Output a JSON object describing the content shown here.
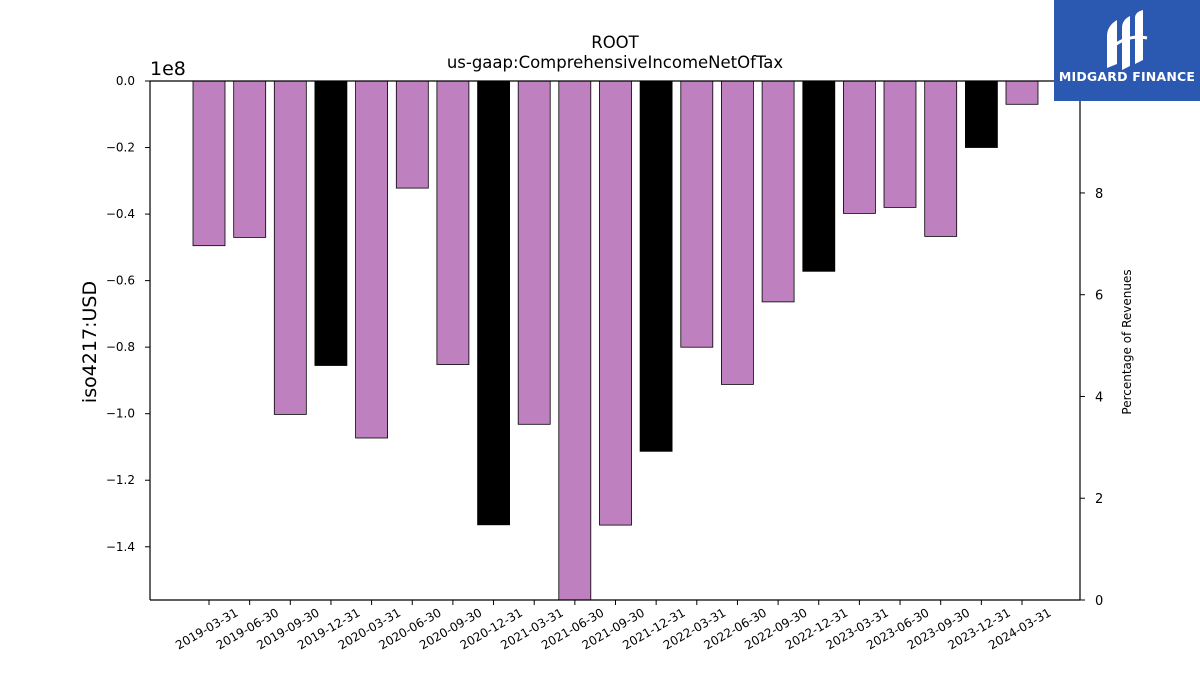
{
  "chart_data": {
    "type": "bar",
    "title": "ROOT",
    "subtitle": "us-gaap:ComprehensiveIncomeNetOfTax",
    "ylabel": "iso4217:USD",
    "y_offset_label": "1e8",
    "y2label": "Percentage of Revenues",
    "ylim": [
      -156000000,
      0
    ],
    "y_ticks": [
      0,
      -20000000,
      -40000000,
      -60000000,
      -80000000,
      -100000000,
      -120000000,
      -140000000
    ],
    "y_tick_labels": [
      "0.0",
      "−0.2",
      "−0.4",
      "−0.6",
      "−0.8",
      "−1.0",
      "−1.2",
      "−1.4"
    ],
    "y2lim": [
      0,
      10.2
    ],
    "y2_ticks": [
      0,
      2,
      4,
      6,
      8
    ],
    "y2_tick_labels": [
      "0",
      "2",
      "4",
      "6",
      "8"
    ],
    "grid": false,
    "colors": {
      "quarter": "#bf80bf",
      "year_end": "#000000"
    },
    "categories": [
      "2019-03-31",
      "2019-06-30",
      "2019-09-30",
      "2019-12-31",
      "2020-03-31",
      "2020-06-30",
      "2020-09-30",
      "2020-12-31",
      "2021-03-31",
      "2021-06-30",
      "2021-09-30",
      "2021-12-31",
      "2022-03-31",
      "2022-06-30",
      "2022-09-30",
      "2022-12-31",
      "2023-03-31",
      "2023-06-30",
      "2023-09-30",
      "2023-12-31",
      "2024-03-31"
    ],
    "values": [
      -49500000,
      -47000000,
      -100200000,
      -85500000,
      -107300000,
      -32200000,
      -85200000,
      -133400000,
      -103200000,
      -156000000,
      -133500000,
      -111300000,
      -80000000,
      -91200000,
      -66400000,
      -57200000,
      -39800000,
      -38000000,
      -46700000,
      -20000000,
      -7000000
    ],
    "year_end": [
      false,
      false,
      false,
      true,
      false,
      false,
      false,
      true,
      false,
      false,
      false,
      true,
      false,
      false,
      false,
      true,
      false,
      false,
      false,
      true,
      false
    ]
  },
  "logo": {
    "text": "MIDGARD FINANCE",
    "icon": "midgard-logo-icon"
  }
}
